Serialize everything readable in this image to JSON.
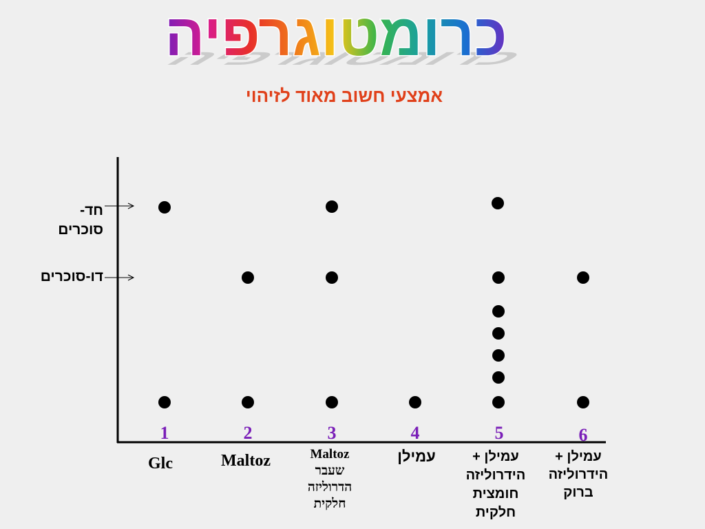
{
  "slide": {
    "title": "כרומטוגרפיה",
    "title_colors": [
      "#7a1fb8",
      "#d81b8e",
      "#e8302a",
      "#f07a1a",
      "#f5c518",
      "#39b54a",
      "#1aa0a0",
      "#1a6fd1",
      "#6a2fc0"
    ],
    "subtitle": "אמצעי חשוב מאוד לזיהוי"
  },
  "chart_data": {
    "type": "scatter",
    "description_rows": [
      "monosaccharides",
      "disaccharides",
      "oligosaccharides",
      "origin"
    ],
    "row_labels": [
      {
        "line1": "חד-",
        "line2": "סוכרים"
      },
      {
        "line1": "דו-סוכרים",
        "line2": ""
      }
    ],
    "lanes": [
      {
        "number": "1",
        "label_lines": [
          "Glc"
        ],
        "spots": [
          "mono",
          "origin"
        ]
      },
      {
        "number": "2",
        "label_lines": [
          "Maltoz"
        ],
        "spots": [
          "di",
          "origin"
        ]
      },
      {
        "number": "3",
        "label_lines": [
          "Maltoz",
          "שעבר",
          "הדרוליזה",
          "חלקית"
        ],
        "spots": [
          "mono",
          "di",
          "origin"
        ]
      },
      {
        "number": "4",
        "label_lines": [
          "עמילן"
        ],
        "spots": [
          "origin"
        ]
      },
      {
        "number": "5",
        "label_lines": [
          "עמילן +",
          "הידרוליזה",
          "חומצית",
          "חלקית"
        ],
        "spots": [
          "mono",
          "di",
          "o1",
          "o2",
          "o3",
          "o4",
          "origin"
        ]
      },
      {
        "number": "6",
        "label_lines": [
          "עמילן +",
          "הידרוליזה",
          "ברוק"
        ],
        "spots": [
          "di",
          "origin"
        ]
      }
    ]
  }
}
